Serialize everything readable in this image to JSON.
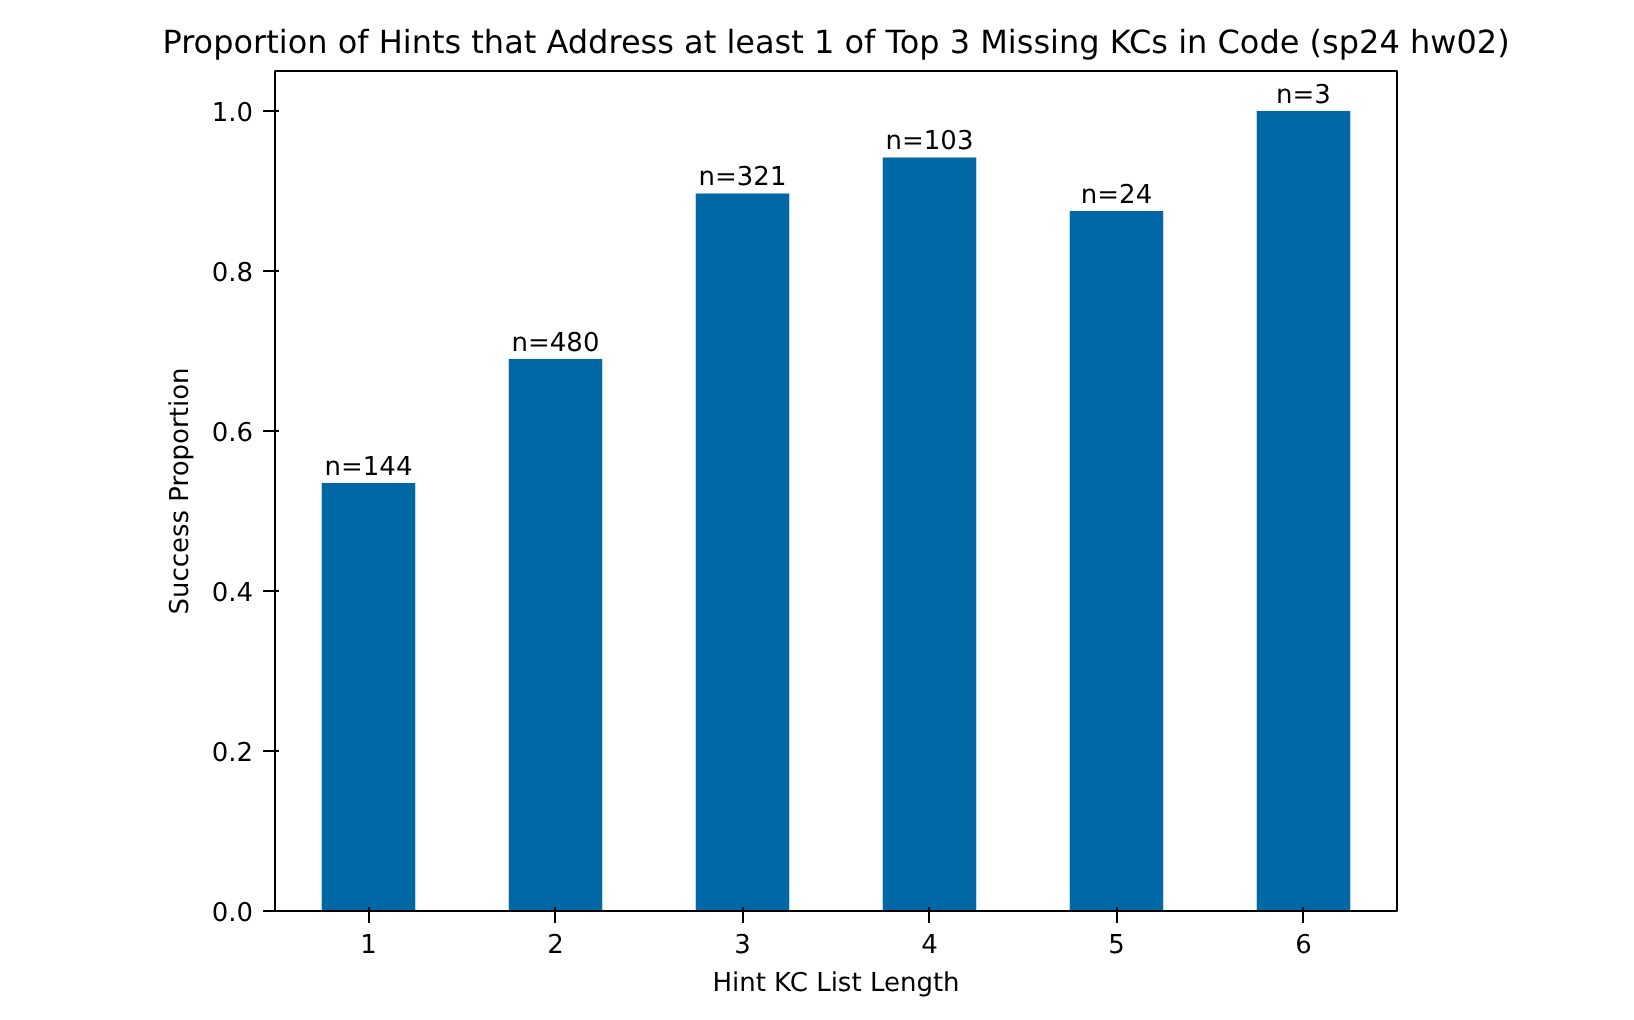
{
  "chart_data": {
    "type": "bar",
    "title": "Proportion of Hints that Address at least 1 of Top 3 Missing KCs in Code (sp24 hw02)",
    "xlabel": "Hint KC List Length",
    "ylabel": "Success Proportion",
    "categories": [
      "1",
      "2",
      "3",
      "4",
      "5",
      "6"
    ],
    "values": [
      0.535,
      0.69,
      0.897,
      0.942,
      0.875,
      1.0
    ],
    "color": "#0068a5",
    "annotations": [
      {
        "text": "n=144",
        "x": "1",
        "y": 0.535
      },
      {
        "text": "n=480",
        "x": "2",
        "y": 0.69
      },
      {
        "text": "n=321",
        "x": "3",
        "y": 0.897
      },
      {
        "text": "n=103",
        "x": "4",
        "y": 0.942
      },
      {
        "text": "n=24",
        "x": "5",
        "y": 0.875
      },
      {
        "text": "n=3",
        "x": "6",
        "y": 1.0
      }
    ],
    "ylim": [
      0,
      1.05
    ],
    "yticks": [
      {
        "value": 0,
        "label": "0.0"
      },
      {
        "value": 0.2,
        "label": "0.2"
      },
      {
        "value": 0.4,
        "label": "0.4"
      },
      {
        "value": 0.6,
        "label": "0.6"
      },
      {
        "value": 0.8,
        "label": "0.8"
      },
      {
        "value": 1.0,
        "label": "1.0"
      }
    ],
    "grid": false
  }
}
